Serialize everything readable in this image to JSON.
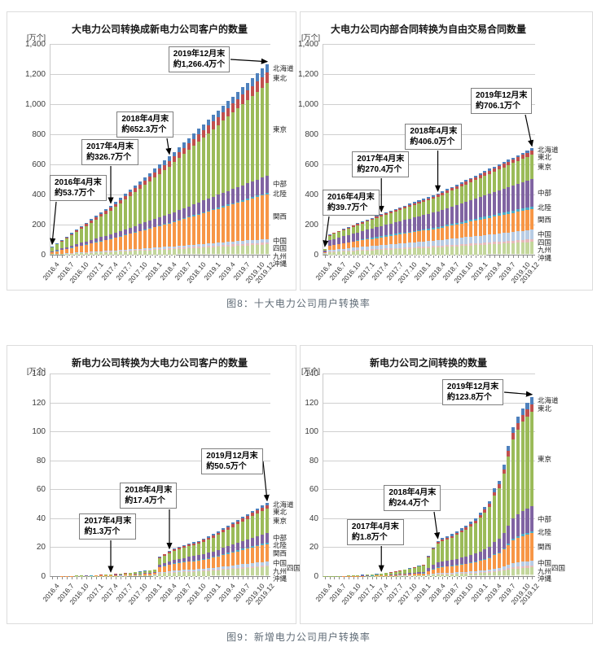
{
  "page": {
    "captions": {
      "fig8": "图8：十大电力公司用户转换率",
      "fig9": "图9：新增电力公司用户转换率"
    }
  },
  "chart_data": {
    "type": "bar",
    "subtype": "stacked-bar-monthly-multiples",
    "unit_label": "[万个]",
    "x_labels": [
      "2016.4",
      "2016.7",
      "2016.10",
      "2017.1",
      "2017.4",
      "2017.7",
      "2017.10",
      "2018.1",
      "2018.4",
      "2018.7",
      "2018.10",
      "2019.1",
      "2019.4",
      "2019.7",
      "2019.10",
      "2019.12"
    ],
    "x_label_indices": [
      0,
      3,
      6,
      9,
      12,
      15,
      18,
      21,
      24,
      27,
      30,
      33,
      36,
      39,
      42,
      44
    ],
    "months_count": 45,
    "series_bottom_to_top": [
      {
        "name": "沖縄",
        "color": "#EBF1DE"
      },
      {
        "name": "九州",
        "color": "#C3D69B"
      },
      {
        "name": "四国",
        "color": "#E6B9B8"
      },
      {
        "name": "中国",
        "color": "#B8CCE4"
      },
      {
        "name": "関西",
        "color": "#F79646"
      },
      {
        "name": "北陸",
        "color": "#4BACC6"
      },
      {
        "name": "中部",
        "color": "#8064A2"
      },
      {
        "name": "東京",
        "color": "#9BBB59"
      },
      {
        "name": "東北",
        "color": "#C0504D"
      },
      {
        "name": "北海道",
        "color": "#4F81BD"
      }
    ],
    "legend_order_top_to_bottom": [
      "北海道",
      "東北",
      "東京",
      "中部",
      "北陸",
      "関西",
      "中国",
      "四国",
      "九州",
      "沖縄"
    ],
    "charts": [
      {
        "title": "大电力公司转换成新电力公司客户的数量",
        "ymax": 1400,
        "yticks": [
          "1,400",
          "1,200",
          "1,000",
          "800",
          "600",
          "400",
          "200",
          "0"
        ],
        "totals": [
          53.7,
          76.5,
          99.2,
          122.0,
          144.7,
          167.5,
          190.2,
          213.0,
          235.7,
          258.5,
          281.2,
          304.0,
          326.7,
          353.8,
          381.0,
          408.1,
          435.2,
          462.3,
          489.5,
          516.6,
          543.7,
          570.9,
          598.0,
          625.1,
          652.3,
          683.0,
          713.7,
          744.4,
          775.1,
          805.8,
          836.5,
          867.2,
          897.9,
          928.6,
          959.4,
          990.1,
          1020.8,
          1051.5,
          1082.2,
          1112.9,
          1143.6,
          1174.3,
          1205.0,
          1235.7,
          1266.4
        ],
        "shares": {
          "沖縄": 0.004,
          "九州": 0.05,
          "四国": 0.011,
          "中国": 0.018,
          "関西": 0.235,
          "北陸": 0.008,
          "中部": 0.089,
          "東京": 0.484,
          "東北": 0.056,
          "北海道": 0.045
        },
        "shikoku_right": false,
        "annotations": [
          {
            "lines": [
              "2016年4月末",
              "約53.7万个"
            ],
            "box": [
              0,
              62
            ],
            "target_index": 0,
            "target_value": 53.7
          },
          {
            "lines": [
              "2017年4月末",
              "約326.7万个"
            ],
            "box": [
              14.5,
              45
            ],
            "target_index": 12,
            "target_value": 326.7
          },
          {
            "lines": [
              "2018年4月末",
              "約652.3万个"
            ],
            "box": [
              30.5,
              32
            ],
            "target_index": 24,
            "target_value": 652.3
          },
          {
            "lines": [
              "2019年12月末",
              "約1,266.4万个"
            ],
            "box": [
              54,
              1
            ],
            "target_index": 44,
            "target_value": 1266.4
          }
        ]
      },
      {
        "title": "大电力公司内部合同转换为自由交易合同数量",
        "ymax": 1400,
        "yticks": [
          "1,400",
          "1,200",
          "1,000",
          "800",
          "600",
          "400",
          "200",
          "0"
        ],
        "totals": [
          39.7,
          135.0,
          147.3,
          159.6,
          171.9,
          184.2,
          196.5,
          208.9,
          221.2,
          233.5,
          245.8,
          258.1,
          270.4,
          281.7,
          293.0,
          304.3,
          315.6,
          326.9,
          338.2,
          349.5,
          360.8,
          372.1,
          383.4,
          394.7,
          406.0,
          421.0,
          436.0,
          451.0,
          466.0,
          481.0,
          496.0,
          511.1,
          526.1,
          541.1,
          556.1,
          571.1,
          586.1,
          601.1,
          616.1,
          631.1,
          646.1,
          661.1,
          676.1,
          691.1,
          706.1
        ],
        "shares": {
          "沖縄": 0.005,
          "九州": 0.115,
          "四国": 0.025,
          "中国": 0.09,
          "関西": 0.195,
          "北陸": 0.025,
          "中部": 0.255,
          "東京": 0.232,
          "東北": 0.038,
          "北海道": 0.02
        },
        "shikoku_right": false,
        "annotations": [
          {
            "lines": [
              "2016年4月末",
              "約39.7万个"
            ],
            "box": [
              0,
              69
            ],
            "target_index": 0,
            "target_value": 39.7
          },
          {
            "lines": [
              "2017年4月末",
              "約270.4万个"
            ],
            "box": [
              14,
              51
            ],
            "target_index": 12,
            "target_value": 270.4
          },
          {
            "lines": [
              "2018年4月末",
              "約406.0万个"
            ],
            "box": [
              39,
              38
            ],
            "target_index": 24,
            "target_value": 406.0
          },
          {
            "lines": [
              "2019年12月末",
              "約706.1万个"
            ],
            "box": [
              70,
              21
            ],
            "target_index": 44,
            "target_value": 706.1
          }
        ]
      },
      {
        "title": "新电力公司转换为大电力公司客户的数量",
        "ymax": 140,
        "yticks": [
          "140",
          "120",
          "100",
          "80",
          "60",
          "40",
          "20",
          "0"
        ],
        "totals": [
          0.1,
          0.1,
          0.2,
          0.2,
          0.3,
          0.4,
          0.5,
          0.6,
          0.7,
          0.8,
          0.9,
          1.1,
          1.3,
          1.5,
          1.8,
          2.1,
          2.4,
          2.8,
          3.2,
          3.7,
          4.2,
          4.8,
          13.5,
          15.5,
          17.4,
          19.0,
          20.5,
          21.5,
          22.5,
          23.5,
          24.5,
          26.0,
          27.5,
          29.0,
          31.0,
          33.0,
          35.0,
          37.0,
          39.0,
          41.0,
          43.0,
          45.0,
          47.0,
          48.8,
          50.5
        ],
        "shares": {
          "沖縄": 0.01,
          "九州": 0.12,
          "四国": 0.02,
          "中国": 0.05,
          "関西": 0.24,
          "北陸": 0.02,
          "中部": 0.13,
          "東京": 0.33,
          "東北": 0.05,
          "北海道": 0.03
        },
        "shikoku_right": true,
        "annotations": [
          {
            "lines": [
              "2017年4月末",
              "約1.3万个"
            ],
            "box": [
              13.5,
              69
            ],
            "target_index": 12,
            "target_value": 1.3
          },
          {
            "lines": [
              "2018年4月末",
              "約17.4万个"
            ],
            "box": [
              32,
              54
            ],
            "target_index": 24,
            "target_value": 17.4
          },
          {
            "lines": [
              "2019月12月末",
              "約50.5万个"
            ],
            "box": [
              69,
              37
            ],
            "target_index": 44,
            "target_value": 50.5
          }
        ]
      },
      {
        "title": "新电力公司之间转换的数量",
        "ymax": 140,
        "yticks": [
          "140",
          "120",
          "100",
          "80",
          "60",
          "40",
          "20",
          "0"
        ],
        "totals": [
          0.1,
          0.1,
          0.2,
          0.2,
          0.3,
          0.4,
          0.5,
          0.7,
          0.9,
          1.1,
          1.3,
          1.5,
          1.8,
          2.2,
          2.7,
          3.3,
          4.0,
          4.8,
          5.6,
          6.4,
          7.2,
          8.0,
          14.0,
          20.0,
          24.4,
          26.5,
          27.5,
          29.0,
          31.0,
          33.0,
          35.0,
          37.5,
          40.0,
          44.0,
          48.0,
          52.0,
          60.5,
          66.0,
          77.0,
          90.0,
          103.0,
          110.0,
          116.0,
          120.0,
          123.8
        ],
        "shares": {
          "沖縄": 0.008,
          "九州": 0.04,
          "四国": 0.012,
          "中国": 0.025,
          "関西": 0.155,
          "北陸": 0.01,
          "中部": 0.14,
          "東京": 0.53,
          "東北": 0.04,
          "北海道": 0.04
        },
        "shikoku_right": true,
        "annotations": [
          {
            "lines": [
              "2017年4月末",
              "約1.8万个"
            ],
            "box": [
              11.5,
              72
            ],
            "target_index": 12,
            "target_value": 1.8
          },
          {
            "lines": [
              "2018年4月末",
              "約24.4万个"
            ],
            "box": [
              29,
              55
            ],
            "target_index": 24,
            "target_value": 24.4
          },
          {
            "lines": [
              "2019年12月末",
              "約123.8万个"
            ],
            "box": [
              56.5,
              3
            ],
            "target_index": 44,
            "target_value": 123.8
          }
        ]
      }
    ]
  }
}
